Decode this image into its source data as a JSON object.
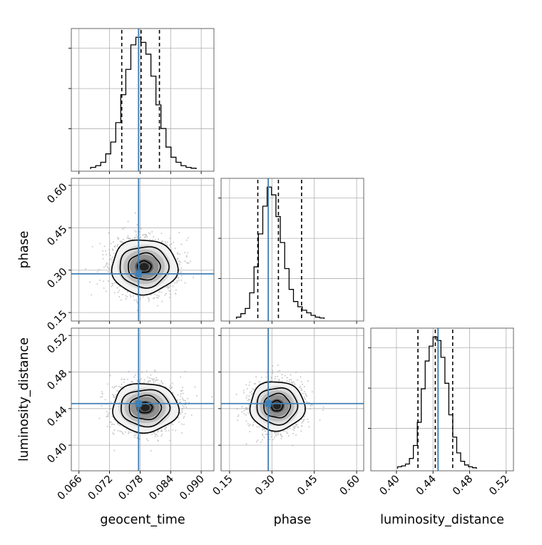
{
  "chart_data": {
    "type": "corner",
    "parameters": [
      {
        "key": "geocent_time",
        "label": "geocent_time",
        "range": [
          0.0645,
          0.0925
        ],
        "ticks": [
          0.066,
          0.072,
          0.078,
          0.084,
          0.09
        ],
        "tick_labels": [
          "0.066",
          "0.072",
          "0.078",
          "0.084",
          "0.090"
        ],
        "truth": 0.0777,
        "quantiles": [
          0.0744,
          0.0782,
          0.0818
        ],
        "mean": 0.0782,
        "sd": 0.003,
        "hist_counts": [
          2,
          4,
          8,
          18,
          32,
          55,
          88,
          118,
          147,
          156,
          150,
          136,
          110,
          76,
          48,
          26,
          14,
          8,
          4,
          2,
          1
        ]
      },
      {
        "key": "phase",
        "label": "phase",
        "range": [
          0.12,
          0.625
        ],
        "ticks": [
          0.15,
          0.3,
          0.45,
          0.6
        ],
        "tick_labels": [
          "0.15",
          "0.30",
          "0.45",
          "0.60"
        ],
        "truth": 0.287,
        "quantiles": [
          0.25,
          0.323,
          0.405
        ],
        "mean": 0.323,
        "sd": 0.045,
        "hist_counts": [
          2,
          6,
          12,
          30,
          60,
          98,
          130,
          152,
          143,
          118,
          88,
          58,
          34,
          20,
          14,
          10,
          7,
          4,
          2,
          1
        ]
      },
      {
        "key": "luminosity_distance",
        "label": "luminosity_distance",
        "range": [
          0.372,
          0.528
        ],
        "ticks": [
          0.4,
          0.44,
          0.48,
          0.52
        ],
        "tick_labels": [
          "0.40",
          "0.44",
          "0.48",
          "0.52"
        ],
        "truth": 0.4455,
        "quantiles": [
          0.4235,
          0.4425,
          0.4615
        ],
        "mean": 0.4425,
        "sd": 0.0125,
        "hist_counts": [
          2,
          3,
          5,
          11,
          25,
          50,
          86,
          116,
          132,
          142,
          138,
          120,
          92,
          58,
          34,
          17,
          8,
          4,
          2,
          1
        ]
      }
    ],
    "pairs": [
      {
        "x": "geocent_time",
        "y": "phase",
        "peak": [
          0.0788,
          0.312
        ]
      },
      {
        "x": "geocent_time",
        "y": "luminosity_distance",
        "peak": [
          0.079,
          0.441
        ]
      },
      {
        "x": "phase",
        "y": "luminosity_distance",
        "peak": [
          0.318,
          0.443
        ]
      }
    ],
    "grid": true,
    "colors": {
      "truth": "#3f7fb5",
      "line": "#000000",
      "grid": "#b0b0b0",
      "points": "#9a9a9a"
    }
  }
}
